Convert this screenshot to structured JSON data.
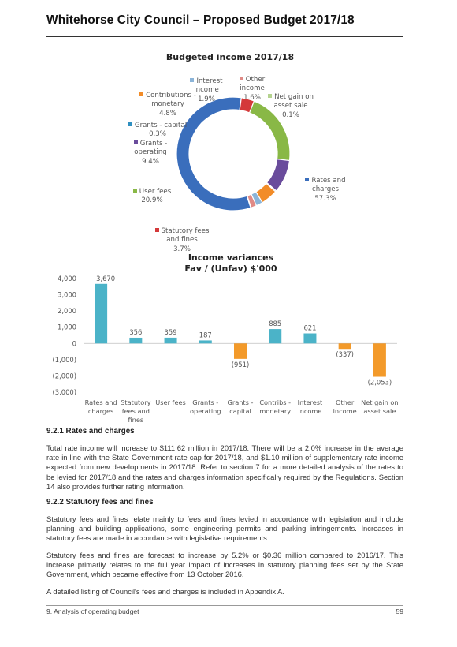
{
  "header": {
    "title": "Whitehorse City Council – Proposed Budget 2017/18"
  },
  "charts": [
    {
      "type": "pie",
      "title": "Budgeted income 2017/18",
      "chart_data": {
        "type": "pie",
        "title": "Budgeted income 2017/18",
        "slices": [
          {
            "label": "Rates and charges",
            "percent_text": "57.3%",
            "value": 57.3,
            "color": "#3a6ebc"
          },
          {
            "label": "Statutory fees and fines",
            "percent_text": "3.7%",
            "value": 3.7,
            "color": "#d4393a"
          },
          {
            "label": "User fees",
            "percent_text": "20.9%",
            "value": 20.9,
            "color": "#89b846"
          },
          {
            "label": "Grants - operating",
            "percent_text": "9.4%",
            "value": 9.4,
            "color": "#6a4c9c"
          },
          {
            "label": "Grants - capital",
            "percent_text": "0.3%",
            "value": 0.3,
            "color": "#2f8fc0"
          },
          {
            "label": "Contributions - monetary",
            "percent_text": "4.8%",
            "value": 4.8,
            "color": "#f28c28"
          },
          {
            "label": "Interest income",
            "percent_text": "1.9%",
            "value": 1.9,
            "color": "#8bb4d8"
          },
          {
            "label": "Other income",
            "percent_text": "1.6%",
            "value": 1.6,
            "color": "#e08a86"
          },
          {
            "label": "Net gain on asset sale",
            "percent_text": "0.1%",
            "value": 0.1,
            "color": "#b5d38f"
          }
        ]
      }
    },
    {
      "type": "bar",
      "title_line1": "Income variances",
      "title_line2": "Fav / (Unfav) $'000",
      "chart_data": {
        "type": "bar",
        "title": "Income variances Fav / (Unfav) $'000",
        "categories": [
          [
            "Rates and",
            "charges"
          ],
          [
            "Statutory",
            "fees and",
            "fines"
          ],
          [
            "User fees"
          ],
          [
            "Grants -",
            "operating"
          ],
          [
            "Grants -",
            "capital"
          ],
          [
            "Contribs -",
            "monetary"
          ],
          [
            "Interest",
            "income"
          ],
          [
            "Other",
            "income"
          ],
          [
            "Net gain on",
            "asset sale"
          ]
        ],
        "values": [
          3670,
          356,
          359,
          187,
          -951,
          885,
          621,
          -337,
          -2053
        ],
        "value_labels": [
          "3,670",
          "356",
          "359",
          "187",
          "(951)",
          "885",
          "621",
          "(337)",
          "(2,053)"
        ],
        "y_ticks": [
          "4,000",
          "3,000",
          "2,000",
          "1,000",
          "0",
          "(1,000)",
          "(2,000)",
          "(3,000)"
        ],
        "ylim": [
          -3000,
          4000
        ],
        "positive_color": "#4bb3c8",
        "negative_color": "#f39a2a"
      }
    }
  ],
  "section_1": {
    "heading": "9.2.1  Rates and charges",
    "body": "Total rate income will increase to $111.62 million in 2017/18. There will be a 2.0% increase in the average rate in line with the State Government rate cap for 2017/18, and $1.10 million of supplementary rate income expected from new developments in 2017/18. Refer to section 7 for a more detailed analysis of the rates to be levied for 2017/18 and the rates and charges information specifically required by the Regulations. Section 14 also provides further rating information."
  },
  "section_2": {
    "heading": "9.2.2  Statutory fees and fines",
    "body1": "Statutory fees and fines relate mainly to fees and fines levied in accordance with legislation and include planning and building applications, some engineering permits and parking infringements. Increases in statutory fees are made in accordance with legislative requirements.",
    "body2": "Statutory fees and fines are forecast to increase by 5.2% or $0.36 million compared to 2016/17. This increase primarily relates to the full year impact of increases in statutory planning fees set by the State Government, which became effective from 13 October 2016.",
    "body3": "A detailed listing of Council's fees and charges is included in Appendix A."
  },
  "footer": {
    "left": "9. Analysis of operating budget",
    "right": "59"
  }
}
